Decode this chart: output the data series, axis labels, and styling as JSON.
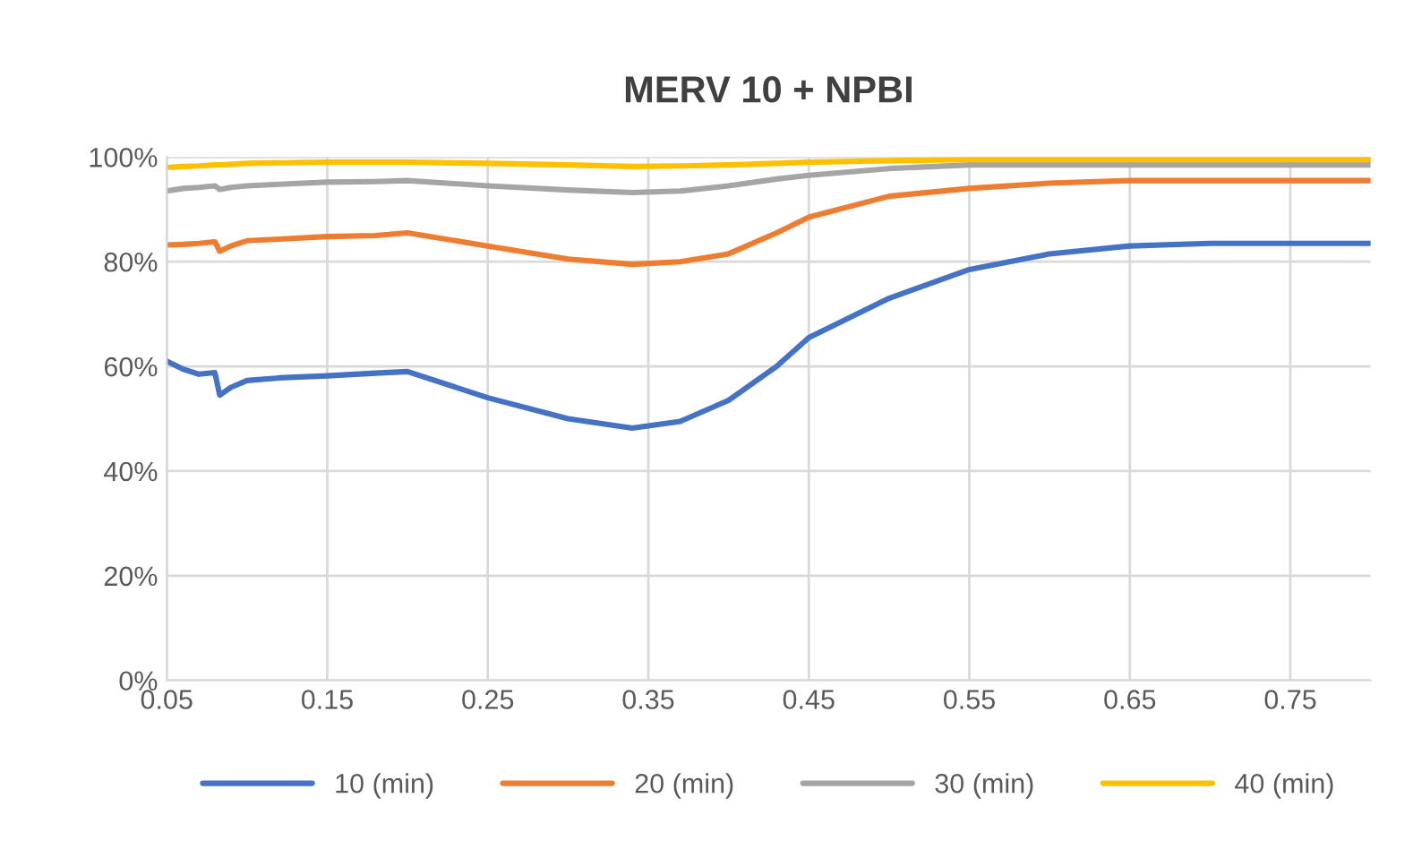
{
  "chart_data": {
    "type": "line",
    "title": "MERV 10 + NPBI",
    "x": [
      0.05,
      0.06,
      0.07,
      0.08,
      0.083,
      0.09,
      0.1,
      0.12,
      0.15,
      0.18,
      0.2,
      0.25,
      0.3,
      0.34,
      0.37,
      0.4,
      0.43,
      0.45,
      0.5,
      0.55,
      0.6,
      0.65,
      0.7,
      0.8
    ],
    "series": [
      {
        "name": "10 (min)",
        "color": "#4472c4",
        "values": [
          61,
          59.5,
          58.5,
          58.8,
          54.5,
          56,
          57.3,
          57.8,
          58.2,
          58.7,
          59,
          54,
          50,
          48.2,
          49.5,
          53.5,
          60,
          65.5,
          73,
          78.5,
          81.5,
          83,
          83.5,
          83.5
        ]
      },
      {
        "name": "20 (min)",
        "color": "#ed7d31",
        "values": [
          83.2,
          83.3,
          83.5,
          83.8,
          82,
          83,
          84,
          84.3,
          84.8,
          85,
          85.5,
          83,
          80.5,
          79.5,
          80,
          81.5,
          85.5,
          88.5,
          92.5,
          94,
          95,
          95.5,
          95.5,
          95.5
        ]
      },
      {
        "name": "30 (min)",
        "color": "#a5a5a5",
        "values": [
          93.5,
          94,
          94.2,
          94.5,
          93.8,
          94.2,
          94.5,
          94.8,
          95.2,
          95.3,
          95.5,
          94.5,
          93.7,
          93.2,
          93.5,
          94.5,
          95.8,
          96.5,
          97.8,
          98.5,
          98.5,
          98.5,
          98.5,
          98.5
        ]
      },
      {
        "name": "40 (min)",
        "color": "#ffc000",
        "values": [
          98,
          98.2,
          98.3,
          98.5,
          98.5,
          98.6,
          98.8,
          98.9,
          99,
          99,
          99,
          98.8,
          98.5,
          98.2,
          98.3,
          98.5,
          98.8,
          99,
          99.3,
          99.5,
          99.5,
          99.5,
          99.5,
          99.5
        ]
      }
    ],
    "xlim": [
      0.05,
      0.8
    ],
    "xticks": [
      0.05,
      0.15,
      0.25,
      0.35,
      0.45,
      0.55,
      0.65,
      0.75
    ],
    "ylim": [
      0,
      100
    ],
    "yticks": [
      {
        "value": 0,
        "label": "0%"
      },
      {
        "value": 20,
        "label": "20%"
      },
      {
        "value": 40,
        "label": "40%"
      },
      {
        "value": 60,
        "label": "60%"
      },
      {
        "value": 80,
        "label": "80%"
      },
      {
        "value": 100,
        "label": "100%"
      }
    ],
    "grid": true,
    "legend": "bottom",
    "marker": "none",
    "line_style": "solid"
  }
}
